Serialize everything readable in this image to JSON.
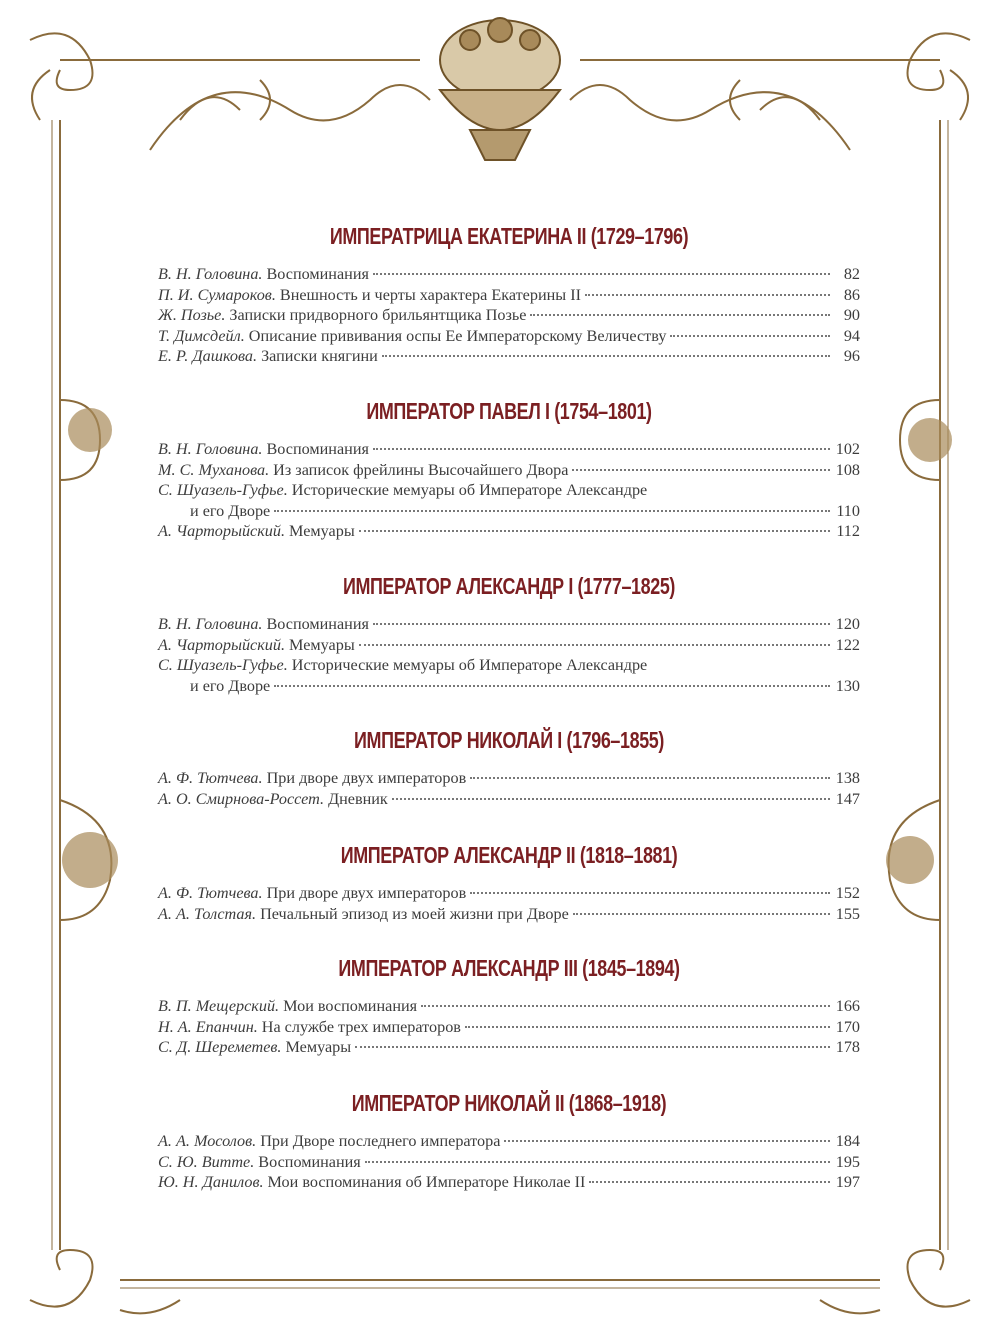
{
  "colors": {
    "heading": "#7b1f22",
    "text": "#3d3d3d",
    "ornament": "#8a6b3c"
  },
  "sections": [
    {
      "heading": "ИМПЕРАТРИЦА ЕКАТЕРИНА II (1729–1796)",
      "entries": [
        {
          "author": "В. Н. Головина.",
          "title": "Воспоминания",
          "page": "82"
        },
        {
          "author": "П. И. Сумароков.",
          "title": "Внешность и черты характера Екатерины II",
          "page": "86"
        },
        {
          "author": "Ж. Позье.",
          "title": "Записки придворного брильянтщика Позье",
          "page": "90"
        },
        {
          "author": "Т. Димсдейл.",
          "title": "Описание прививания оспы Ее Императорскому Величеству",
          "page": "94"
        },
        {
          "author": "Е. Р. Дашкова.",
          "title": "Записки княгини",
          "page": "96"
        }
      ]
    },
    {
      "heading": "ИМПЕРАТОР ПАВЕЛ I (1754–1801)",
      "entries": [
        {
          "author": "В. Н. Головина.",
          "title": "Воспоминания",
          "page": "102"
        },
        {
          "author": "М. С. Муханова.",
          "title": "Из записок фрейлины Высочайшего Двора",
          "page": "108"
        },
        {
          "author": "С. Шуазель-Гуфье.",
          "title": "Исторические мемуары об Императоре Александре",
          "title_cont": "и его Дворе",
          "page": "110"
        },
        {
          "author": "А. Чарторыйский.",
          "title": "Мемуары",
          "page": "112"
        }
      ]
    },
    {
      "heading": "ИМПЕРАТОР АЛЕКСАНДР I (1777–1825)",
      "entries": [
        {
          "author": "В. Н. Головина.",
          "title": "Воспоминания",
          "page": "120"
        },
        {
          "author": "А. Чарторыйский.",
          "title": "Мемуары",
          "page": "122"
        },
        {
          "author": "С. Шуазель-Гуфье.",
          "title": "Исторические мемуары об Императоре Александре",
          "title_cont": "и его Дворе",
          "page": "130"
        }
      ]
    },
    {
      "heading": "ИМПЕРАТОР НИКОЛАЙ I (1796–1855)",
      "entries": [
        {
          "author": "А. Ф. Тютчева.",
          "title": "При дворе двух императоров",
          "page": "138"
        },
        {
          "author": "А. О. Смирнова-Россет.",
          "title": "Дневник",
          "page": "147"
        }
      ]
    },
    {
      "heading": "ИМПЕРАТОР АЛЕКСАНДР II (1818–1881)",
      "entries": [
        {
          "author": "А. Ф. Тютчева.",
          "title": "При дворе двух императоров",
          "page": "152"
        },
        {
          "author": "А. А. Толстая.",
          "title": "Печальный эпизод из моей жизни при Дворе",
          "page": "155"
        }
      ]
    },
    {
      "heading": "ИМПЕРАТОР АЛЕКСАНДР III (1845–1894)",
      "entries": [
        {
          "author": "В. П. Мещерский.",
          "title": "Мои воспоминания",
          "page": "166"
        },
        {
          "author": "Н. А. Епанчин.",
          "title": "На службе трех императоров",
          "page": "170"
        },
        {
          "author": "С. Д. Шереметев.",
          "title": "Мемуары",
          "page": "178"
        }
      ]
    },
    {
      "heading": "ИМПЕРАТОР НИКОЛАЙ II (1868–1918)",
      "entries": [
        {
          "author": "А. А. Мосолов.",
          "title": "При Дворе последнего императора",
          "page": "184"
        },
        {
          "author": "С. Ю. Витте.",
          "title": "Воспоминания",
          "page": "195"
        },
        {
          "author": "Ю. Н. Данилов.",
          "title": "Мои воспоминания об Императоре Николае II",
          "page": "197"
        }
      ]
    }
  ]
}
